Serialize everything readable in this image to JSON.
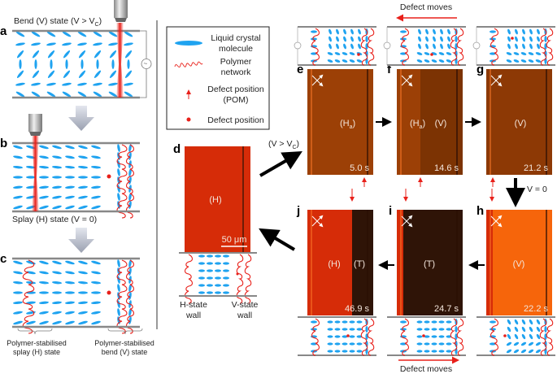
{
  "panel_labels": {
    "a": "a",
    "b": "b",
    "c": "c",
    "d": "d",
    "e": "e",
    "f": "f",
    "g": "g",
    "h": "h",
    "i": "i",
    "j": "j"
  },
  "panel_a": {
    "title": "Bend (V) state (V > V",
    "title_sub": "C",
    "title_end": ")"
  },
  "panel_b": {
    "caption": "Splay (H) state (V = 0)"
  },
  "panel_c": {
    "left_caption": [
      "Polymer-stabilised",
      "splay (H) state"
    ],
    "right_caption": [
      "Polymer-stabilised",
      "bend (V) state"
    ]
  },
  "legend": {
    "items": [
      {
        "icon": "liquid-crystal-molecule-icon",
        "label": [
          "Liquid crystal",
          "molecule"
        ]
      },
      {
        "icon": "polymer-network-icon",
        "label": [
          "Polymer",
          "network"
        ]
      },
      {
        "icon": "defect-arrow-icon",
        "label": [
          "Defect position",
          "(POM)"
        ]
      },
      {
        "icon": "defect-dot-icon",
        "label": [
          "Defect position"
        ]
      }
    ]
  },
  "panel_d": {
    "region": "(H)",
    "scale_bar": "50 μm",
    "walls": [
      [
        "H-state",
        "wall"
      ],
      [
        "V-state",
        "wall"
      ]
    ]
  },
  "transition_labels": {
    "d_to_e": "(V > V",
    "d_to_e_sub": "C",
    "d_to_e_end": ")",
    "g_to_h": "V = 0"
  },
  "defect_moves": {
    "top": "Defect moves",
    "bottom": "Defect moves"
  },
  "micrographs": {
    "e": {
      "regions": [
        "(H",
        "a",
        ")"
      ],
      "time": "5.0 s"
    },
    "f": {
      "regions": [
        "(H",
        "a",
        ")",
        "(V)"
      ],
      "time": "14.6 s"
    },
    "g": {
      "regions": [
        "(V)"
      ],
      "time": "21.2 s"
    },
    "h": {
      "regions": [
        "(V)"
      ],
      "time": "22.2 s"
    },
    "i": {
      "regions": [
        "(T)"
      ],
      "time": "24.7 s"
    },
    "j": {
      "regions": [
        "(H)",
        "(T)"
      ],
      "time": "46.9 s"
    }
  },
  "colors": {
    "lc_blue": "#1fa3f0",
    "polymer_red": "#e8201a",
    "defect_red": "#e8201a",
    "h_state": "#d62c08",
    "ha_state": "#9c4006",
    "v_dark": "#7c3303",
    "v_bright": "#f6650b",
    "t_state": "#2f1407",
    "plate": "#888888"
  }
}
